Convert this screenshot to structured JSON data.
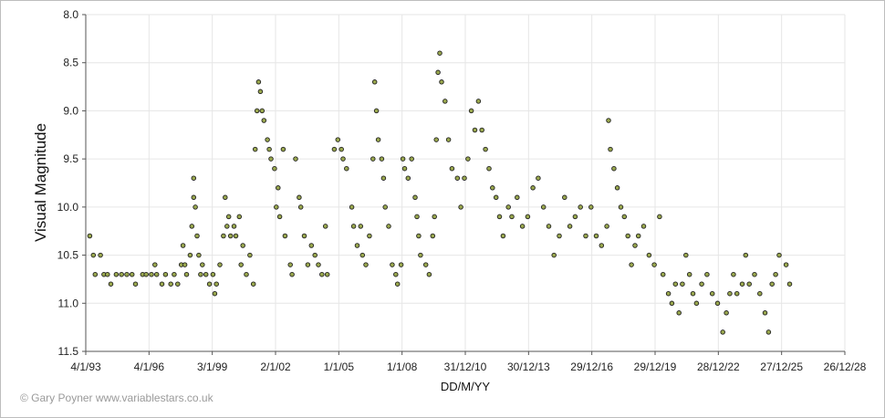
{
  "credit": "© Gary Poyner www.variablestars.co.uk",
  "chart_data": {
    "type": "scatter",
    "xlabel": "DD/M/YY",
    "ylabel": "Visual Magnitude",
    "x_axis": {
      "type": "date",
      "min": "1993-01-04",
      "max": "2028-12-26",
      "tick_labels": [
        "4/1/93",
        "4/1/96",
        "3/1/99",
        "2/1/02",
        "1/1/05",
        "1/1/08",
        "31/12/10",
        "30/12/13",
        "29/12/16",
        "29/12/19",
        "28/12/22",
        "27/12/25",
        "26/12/28"
      ]
    },
    "y_axis": {
      "inverted": true,
      "min": 8.0,
      "max": 11.5,
      "tick_labels": [
        "8.0",
        "8.5",
        "9.0",
        "9.5",
        "10.0",
        "10.5",
        "11.0",
        "11.5"
      ]
    },
    "grid": true,
    "marker": {
      "shape": "circle",
      "fill": "#9aa84e",
      "edge": "#222222"
    },
    "points": [
      [
        "1993-03",
        "10.3"
      ],
      [
        "1993-05",
        "10.5"
      ],
      [
        "1993-06",
        "10.7"
      ],
      [
        "1993-09",
        "10.5"
      ],
      [
        "1993-11",
        "10.7"
      ],
      [
        "1994-01",
        "10.7"
      ],
      [
        "1994-03",
        "10.8"
      ],
      [
        "1994-06",
        "10.7"
      ],
      [
        "1994-09",
        "10.7"
      ],
      [
        "1994-12",
        "10.7"
      ],
      [
        "1995-03",
        "10.7"
      ],
      [
        "1995-05",
        "10.8"
      ],
      [
        "1995-09",
        "10.7"
      ],
      [
        "1995-11",
        "10.7"
      ],
      [
        "1996-02",
        "10.7"
      ],
      [
        "1996-04",
        "10.6"
      ],
      [
        "1996-05",
        "10.7"
      ],
      [
        "1996-08",
        "10.8"
      ],
      [
        "1996-10",
        "10.7"
      ],
      [
        "1997-01",
        "10.8"
      ],
      [
        "1997-03",
        "10.7"
      ],
      [
        "1997-05",
        "10.8"
      ],
      [
        "1997-07",
        "10.6"
      ],
      [
        "1997-08",
        "10.4"
      ],
      [
        "1997-09",
        "10.6"
      ],
      [
        "1997-10",
        "10.7"
      ],
      [
        "1997-12",
        "10.5"
      ],
      [
        "1998-01",
        "10.2"
      ],
      [
        "1998-02",
        "9.7"
      ],
      [
        "1998-02",
        "9.9"
      ],
      [
        "1998-03",
        "10.0"
      ],
      [
        "1998-04",
        "10.3"
      ],
      [
        "1998-05",
        "10.5"
      ],
      [
        "1998-06",
        "10.7"
      ],
      [
        "1998-07",
        "10.6"
      ],
      [
        "1998-09",
        "10.7"
      ],
      [
        "1998-11",
        "10.8"
      ],
      [
        "1999-01",
        "10.7"
      ],
      [
        "1999-02",
        "10.9"
      ],
      [
        "1999-03",
        "10.8"
      ],
      [
        "1999-05",
        "10.6"
      ],
      [
        "1999-07",
        "10.3"
      ],
      [
        "1999-08",
        "9.9"
      ],
      [
        "1999-09",
        "10.2"
      ],
      [
        "1999-10",
        "10.1"
      ],
      [
        "1999-11",
        "10.3"
      ],
      [
        "2000-01",
        "10.2"
      ],
      [
        "2000-02",
        "10.3"
      ],
      [
        "2000-04",
        "10.1"
      ],
      [
        "2000-05",
        "10.6"
      ],
      [
        "2000-06",
        "10.4"
      ],
      [
        "2000-08",
        "10.7"
      ],
      [
        "2000-10",
        "10.5"
      ],
      [
        "2000-12",
        "10.8"
      ],
      [
        "2001-01",
        "9.4"
      ],
      [
        "2001-02",
        "9.0"
      ],
      [
        "2001-03",
        "8.7"
      ],
      [
        "2001-04",
        "8.8"
      ],
      [
        "2001-05",
        "9.0"
      ],
      [
        "2001-06",
        "9.1"
      ],
      [
        "2001-08",
        "9.3"
      ],
      [
        "2001-09",
        "9.4"
      ],
      [
        "2001-10",
        "9.5"
      ],
      [
        "2001-12",
        "9.6"
      ],
      [
        "2002-01",
        "10.0"
      ],
      [
        "2002-02",
        "9.8"
      ],
      [
        "2002-03",
        "10.1"
      ],
      [
        "2002-05",
        "9.4"
      ],
      [
        "2002-06",
        "10.3"
      ],
      [
        "2002-09",
        "10.6"
      ],
      [
        "2002-10",
        "10.7"
      ],
      [
        "2002-12",
        "9.5"
      ],
      [
        "2003-02",
        "9.9"
      ],
      [
        "2003-03",
        "10.0"
      ],
      [
        "2003-05",
        "10.3"
      ],
      [
        "2003-07",
        "10.6"
      ],
      [
        "2003-09",
        "10.4"
      ],
      [
        "2003-11",
        "10.5"
      ],
      [
        "2004-01",
        "10.6"
      ],
      [
        "2004-03",
        "10.7"
      ],
      [
        "2004-05",
        "10.2"
      ],
      [
        "2004-06",
        "10.7"
      ],
      [
        "2004-10",
        "9.4"
      ],
      [
        "2004-12",
        "9.3"
      ],
      [
        "2005-02",
        "9.4"
      ],
      [
        "2005-03",
        "9.5"
      ],
      [
        "2005-05",
        "9.6"
      ],
      [
        "2005-08",
        "10.0"
      ],
      [
        "2005-09",
        "10.2"
      ],
      [
        "2005-11",
        "10.4"
      ],
      [
        "2006-01",
        "10.2"
      ],
      [
        "2006-02",
        "10.5"
      ],
      [
        "2006-04",
        "10.6"
      ],
      [
        "2006-06",
        "10.3"
      ],
      [
        "2006-08",
        "9.5"
      ],
      [
        "2006-09",
        "8.7"
      ],
      [
        "2006-10",
        "9.0"
      ],
      [
        "2006-11",
        "9.3"
      ],
      [
        "2007-01",
        "9.5"
      ],
      [
        "2007-02",
        "9.7"
      ],
      [
        "2007-03",
        "10.0"
      ],
      [
        "2007-05",
        "10.2"
      ],
      [
        "2007-07",
        "10.6"
      ],
      [
        "2007-09",
        "10.7"
      ],
      [
        "2007-10",
        "10.8"
      ],
      [
        "2007-12",
        "10.6"
      ],
      [
        "2008-01",
        "9.5"
      ],
      [
        "2008-02",
        "9.6"
      ],
      [
        "2008-04",
        "9.7"
      ],
      [
        "2008-06",
        "9.5"
      ],
      [
        "2008-08",
        "9.9"
      ],
      [
        "2008-09",
        "10.1"
      ],
      [
        "2008-10",
        "10.3"
      ],
      [
        "2008-11",
        "10.5"
      ],
      [
        "2009-02",
        "10.6"
      ],
      [
        "2009-04",
        "10.7"
      ],
      [
        "2009-06",
        "10.3"
      ],
      [
        "2009-07",
        "10.1"
      ],
      [
        "2009-08",
        "9.3"
      ],
      [
        "2009-09",
        "8.6"
      ],
      [
        "2009-10",
        "8.4"
      ],
      [
        "2009-11",
        "8.7"
      ],
      [
        "2010-01",
        "8.9"
      ],
      [
        "2010-03",
        "9.3"
      ],
      [
        "2010-05",
        "9.6"
      ],
      [
        "2010-08",
        "9.7"
      ],
      [
        "2010-10",
        "10.0"
      ],
      [
        "2010-12",
        "9.7"
      ],
      [
        "2011-02",
        "9.5"
      ],
      [
        "2011-04",
        "9.0"
      ],
      [
        "2011-06",
        "9.2"
      ],
      [
        "2011-08",
        "8.9"
      ],
      [
        "2011-10",
        "9.2"
      ],
      [
        "2011-12",
        "9.4"
      ],
      [
        "2012-02",
        "9.6"
      ],
      [
        "2012-04",
        "9.8"
      ],
      [
        "2012-06",
        "9.9"
      ],
      [
        "2012-08",
        "10.1"
      ],
      [
        "2012-10",
        "10.3"
      ],
      [
        "2013-01",
        "10.0"
      ],
      [
        "2013-03",
        "10.1"
      ],
      [
        "2013-06",
        "9.9"
      ],
      [
        "2013-09",
        "10.2"
      ],
      [
        "2013-12",
        "10.1"
      ],
      [
        "2014-03",
        "9.8"
      ],
      [
        "2014-06",
        "9.7"
      ],
      [
        "2014-09",
        "10.0"
      ],
      [
        "2014-12",
        "10.2"
      ],
      [
        "2015-03",
        "10.5"
      ],
      [
        "2015-06",
        "10.3"
      ],
      [
        "2015-09",
        "9.9"
      ],
      [
        "2015-12",
        "10.2"
      ],
      [
        "2016-03",
        "10.1"
      ],
      [
        "2016-06",
        "10.0"
      ],
      [
        "2016-09",
        "10.3"
      ],
      [
        "2016-12",
        "10.0"
      ],
      [
        "2017-03",
        "10.3"
      ],
      [
        "2017-06",
        "10.4"
      ],
      [
        "2017-09",
        "10.2"
      ],
      [
        "2017-10",
        "9.1"
      ],
      [
        "2017-11",
        "9.4"
      ],
      [
        "2018-01",
        "9.6"
      ],
      [
        "2018-03",
        "9.8"
      ],
      [
        "2018-05",
        "10.0"
      ],
      [
        "2018-07",
        "10.1"
      ],
      [
        "2018-09",
        "10.3"
      ],
      [
        "2018-11",
        "10.6"
      ],
      [
        "2019-01",
        "10.4"
      ],
      [
        "2019-03",
        "10.3"
      ],
      [
        "2019-06",
        "10.2"
      ],
      [
        "2019-09",
        "10.5"
      ],
      [
        "2019-12",
        "10.6"
      ],
      [
        "2020-03",
        "10.1"
      ],
      [
        "2020-05",
        "10.7"
      ],
      [
        "2020-08",
        "10.9"
      ],
      [
        "2020-10",
        "11.0"
      ],
      [
        "2020-12",
        "10.8"
      ],
      [
        "2021-02",
        "11.1"
      ],
      [
        "2021-04",
        "10.8"
      ],
      [
        "2021-06",
        "10.5"
      ],
      [
        "2021-08",
        "10.7"
      ],
      [
        "2021-10",
        "10.9"
      ],
      [
        "2021-12",
        "11.0"
      ],
      [
        "2022-03",
        "10.8"
      ],
      [
        "2022-06",
        "10.7"
      ],
      [
        "2022-09",
        "10.9"
      ],
      [
        "2022-12",
        "11.0"
      ],
      [
        "2023-03",
        "11.3"
      ],
      [
        "2023-05",
        "11.1"
      ],
      [
        "2023-07",
        "10.9"
      ],
      [
        "2023-09",
        "10.7"
      ],
      [
        "2023-11",
        "10.9"
      ],
      [
        "2024-02",
        "10.8"
      ],
      [
        "2024-04",
        "10.5"
      ],
      [
        "2024-06",
        "10.8"
      ],
      [
        "2024-09",
        "10.7"
      ],
      [
        "2024-12",
        "10.9"
      ],
      [
        "2025-03",
        "11.1"
      ],
      [
        "2025-05",
        "11.3"
      ],
      [
        "2025-07",
        "10.8"
      ],
      [
        "2025-09",
        "10.7"
      ],
      [
        "2025-11",
        "10.5"
      ],
      [
        "2026-03",
        "10.6"
      ],
      [
        "2026-05",
        "10.8"
      ]
    ]
  }
}
